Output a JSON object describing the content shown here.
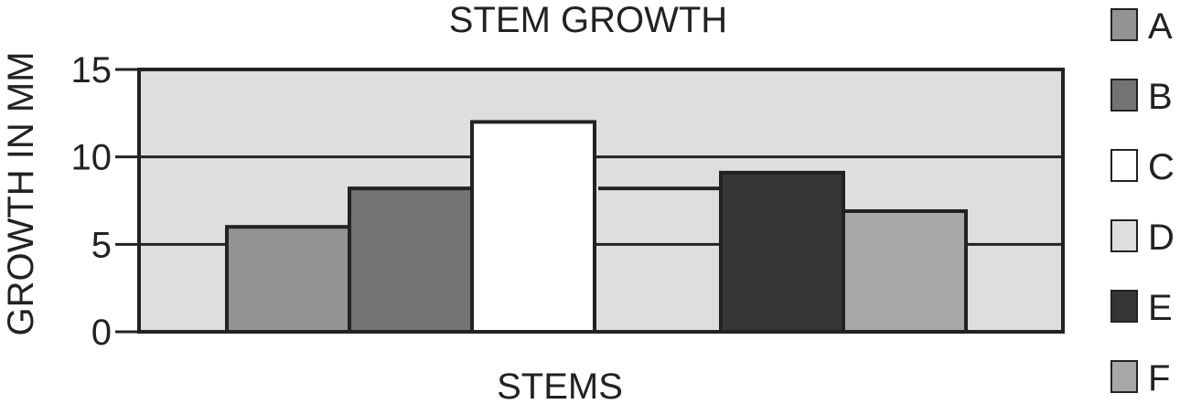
{
  "chart_data": {
    "type": "bar",
    "title": "STEM GROWTH",
    "xlabel": "STEMS",
    "ylabel": "GROWTH IN MM",
    "ylim": [
      0,
      15
    ],
    "yticks": [
      0,
      5,
      10,
      15
    ],
    "grid": true,
    "legend_position": "right",
    "categories": [
      ""
    ],
    "series": [
      {
        "name": "A",
        "values": [
          6.0
        ],
        "color": "#939393"
      },
      {
        "name": "B",
        "values": [
          8.2
        ],
        "color": "#737373"
      },
      {
        "name": "C",
        "values": [
          12.0
        ],
        "color": "#ffffff"
      },
      {
        "name": "D",
        "values": [
          8.2
        ],
        "color": "#dedede"
      },
      {
        "name": "E",
        "values": [
          9.1
        ],
        "color": "#363636"
      },
      {
        "name": "F",
        "values": [
          6.9
        ],
        "color": "#a8a8a8"
      }
    ],
    "plot_background": "#dedede",
    "axis_color": "#222222"
  }
}
